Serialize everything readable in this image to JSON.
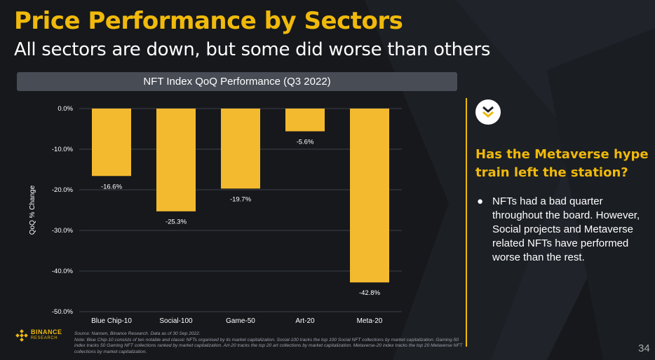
{
  "slide": {
    "title": "Price Performance by Sectors",
    "subtitle": "All sectors are down, but some did worse than others",
    "page_number": "34"
  },
  "colors": {
    "accent": "#f0b90b",
    "bar": "#f3ba2f",
    "background": "#16181c",
    "header_bg": "#474c55"
  },
  "chart_data": {
    "type": "bar",
    "title": "NFT Index QoQ Performance (Q3 2022)",
    "xlabel": "",
    "ylabel": "QoQ % Change",
    "categories": [
      "Blue Chip-10",
      "Social-100",
      "Game-50",
      "Art-20",
      "Meta-20"
    ],
    "values": [
      -16.6,
      -25.3,
      -19.7,
      -5.6,
      -42.8
    ],
    "data_labels": [
      "-16.6%",
      "-25.3%",
      "-19.7%",
      "-5.6%",
      "-42.8%"
    ],
    "ylim": [
      -50,
      0
    ],
    "yticks": [
      0,
      -10,
      -20,
      -30,
      -40,
      -50
    ],
    "ytick_labels": [
      "0.0%",
      "-10.0%",
      "-20.0%",
      "-30.0%",
      "-40.0%",
      "-50.0%"
    ],
    "grid": true,
    "legend": "none"
  },
  "sidebar": {
    "icon": "chevron-down-icon",
    "heading": "Has the Metaverse hype train left the station?",
    "bullets": [
      {
        "symbol": "●",
        "text": "NFTs had a bad quarter throughout the board. However, Social projects and Metaverse related NFTs have performed worse than the rest."
      }
    ]
  },
  "logo": {
    "line1": "BINANCE",
    "line2": "RESEARCH"
  },
  "footnote": {
    "source": "Source: Nansen, Binance Research. Data as of 30 Sep 2022.",
    "note": "Note: Blue Chip-10 consists of ten notable and classic NFTs organised by its market capitalization. Social-100 tracks the top 100 Social NFT collections by market capitalization. Gaming-50 index tracks 50 Gaming NFT collections ranked by market capitalization. Art-20 tracks the top 20 art collections by market capitalization. Metaverse-20 index tracks the top 20 Metaverse NFT collections by market capitalization."
  }
}
